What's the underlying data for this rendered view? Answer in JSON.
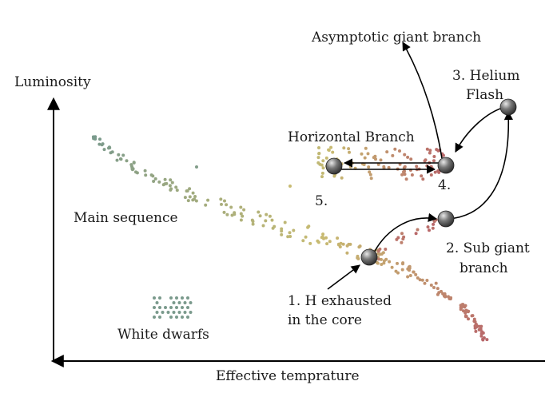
{
  "axes": {
    "y_label": "Luminosity",
    "x_label": "Effective temprature"
  },
  "regions": {
    "main_sequence": "Main sequence",
    "white_dwarfs": "White dwarfs",
    "horizontal_branch": "Horizontal Branch",
    "asymptotic_giant_branch": "Asymptotic giant branch"
  },
  "stages": {
    "s1_line1": "1.  H exhausted",
    "s1_line2": "in the core",
    "s2_line1": "2.  Sub giant",
    "s2_line2": "branch",
    "s3_line1": "3.  Helium",
    "s3_line2": "Flash",
    "s4": "4.",
    "s5": "5."
  },
  "colors": {
    "blue_green": "#7a9a8c",
    "yellow": "#c8bb72",
    "red": "#b8666a",
    "star_marker": "#555555"
  }
}
